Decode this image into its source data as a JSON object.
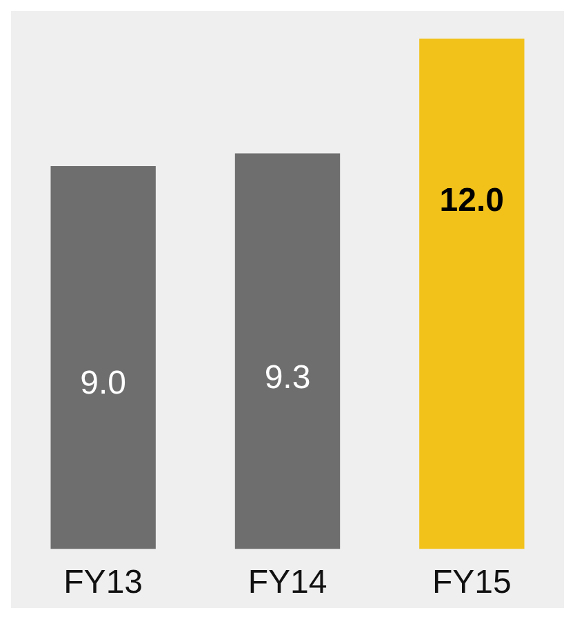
{
  "chart_data": {
    "type": "bar",
    "categories": [
      "FY13",
      "FY14",
      "FY15"
    ],
    "values": [
      9.0,
      9.3,
      12.0
    ],
    "colors": [
      "#6e6e6e",
      "#6e6e6e",
      "#f2c21b"
    ],
    "value_labels": [
      "9.0",
      "9.3",
      "12.0"
    ]
  }
}
